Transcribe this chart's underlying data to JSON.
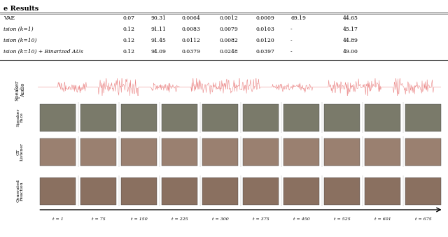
{
  "title": "",
  "section_title": "e Results",
  "table": {
    "rows": [
      {
        "name": "VAE",
        "v1": "0.07",
        "v2": "90.31",
        "v3": "0.0064",
        "v4": "0.0012",
        "v5": "0.0009",
        "v6": "69.19",
        "v7": "44.65"
      },
      {
        "name": "ision (k=1)",
        "v1": "0.12",
        "v2": "91.11",
        "v3": "0.0083",
        "v4": "0.0079",
        "v5": "0.0103",
        "v6": "-",
        "v7": "45.17"
      },
      {
        "name": "ision (k=10)",
        "v1": "0.12",
        "v2": "91.45",
        "v3": "0.0112",
        "v4": "0.0082",
        "v5": "0.0120",
        "v6": "-",
        "v7": "44.89"
      },
      {
        "name": "ision (k=10) + Binarized AUs",
        "v1": "0.12",
        "v2": "94.09",
        "v3": "0.0379",
        "v4": "0.0248",
        "v5": "0.0397",
        "v6": "-",
        "v7": "49.00"
      }
    ]
  },
  "time_labels": [
    "t = 1",
    "t = 75",
    "t = 150",
    "t = 225",
    "t = 300",
    "t = 375",
    "t = 450",
    "t = 525",
    "t = 601",
    "t = 675"
  ],
  "row_labels": [
    "Speaker\nAudio",
    "Speaker\nFace",
    "GT\nListener",
    "Generated\nReaction"
  ],
  "n_cols": 10,
  "bg_color": "#ffffff",
  "table_line_color": "#000000",
  "waveform_color": "#e87878",
  "face_placeholder_color": "#8B7355",
  "face_bg_color": "#A0A0A0",
  "speaker_face_bg": "#7a7a6a",
  "gt_listener_bg": "#9a8070",
  "gen_reaction_bg": "#8a7060",
  "timeline_color": "#000000",
  "text_color": "#000000",
  "bold_title_color": "#000000"
}
